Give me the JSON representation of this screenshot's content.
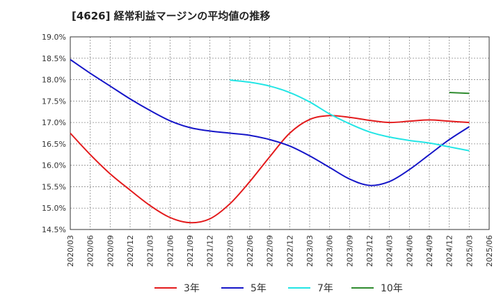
{
  "chart_data": {
    "type": "line",
    "title": "[4626]  経常利益マージンの平均値の推移",
    "xlabel": "",
    "ylabel": "",
    "ylim": [
      14.5,
      19.0
    ],
    "y_ticks": [
      "19.0%",
      "18.5%",
      "18.0%",
      "17.5%",
      "17.0%",
      "16.5%",
      "16.0%",
      "15.5%",
      "15.0%",
      "14.5%"
    ],
    "y_tick_values": [
      19.0,
      18.5,
      18.0,
      17.5,
      17.0,
      16.5,
      16.0,
      15.5,
      15.0,
      14.5
    ],
    "x_ticks": [
      "2020/03",
      "2020/06",
      "2020/09",
      "2020/12",
      "2021/03",
      "2021/06",
      "2021/09",
      "2021/12",
      "2022/03",
      "2022/06",
      "2022/09",
      "2022/12",
      "2023/03",
      "2023/06",
      "2023/09",
      "2023/12",
      "2024/03",
      "2024/06",
      "2024/09",
      "2024/12",
      "2025/03",
      "2025/06"
    ],
    "grid": true,
    "legend_position": "bottom",
    "series": [
      {
        "name": "3年",
        "color": "#e31a1c",
        "x": [
          "2020/03",
          "2020/06",
          "2020/09",
          "2020/12",
          "2021/03",
          "2021/06",
          "2021/09",
          "2021/12",
          "2022/03",
          "2022/06",
          "2022/09",
          "2022/12",
          "2023/03",
          "2023/06",
          "2023/09",
          "2023/12",
          "2024/03",
          "2024/06",
          "2024/09",
          "2024/12",
          "2025/03"
        ],
        "values": [
          16.75,
          16.25,
          15.8,
          15.42,
          15.06,
          14.78,
          14.66,
          14.75,
          15.1,
          15.62,
          16.2,
          16.75,
          17.07,
          17.16,
          17.12,
          17.05,
          17.0,
          17.03,
          17.06,
          17.03,
          17.0
        ]
      },
      {
        "name": "5年",
        "color": "#1515c8",
        "x": [
          "2020/03",
          "2020/06",
          "2020/09",
          "2020/12",
          "2021/03",
          "2021/06",
          "2021/09",
          "2021/12",
          "2022/03",
          "2022/06",
          "2022/09",
          "2022/12",
          "2023/03",
          "2023/06",
          "2023/09",
          "2023/12",
          "2024/03",
          "2024/06",
          "2024/09",
          "2024/12",
          "2025/03"
        ],
        "values": [
          18.47,
          18.15,
          17.85,
          17.55,
          17.28,
          17.04,
          16.88,
          16.8,
          16.75,
          16.7,
          16.6,
          16.45,
          16.22,
          15.95,
          15.68,
          15.53,
          15.62,
          15.9,
          16.25,
          16.6,
          16.9
        ]
      },
      {
        "name": "7年",
        "color": "#22e5e5",
        "x": [
          "2022/03",
          "2022/06",
          "2022/09",
          "2022/12",
          "2023/03",
          "2023/06",
          "2023/09",
          "2023/12",
          "2024/03",
          "2024/06",
          "2024/09",
          "2024/12",
          "2025/03"
        ],
        "values": [
          17.99,
          17.94,
          17.85,
          17.7,
          17.48,
          17.2,
          16.97,
          16.78,
          16.66,
          16.58,
          16.52,
          16.43,
          16.34
        ]
      },
      {
        "name": "10年",
        "color": "#2e8b2e",
        "x": [
          "2024/12",
          "2025/03"
        ],
        "values": [
          17.7,
          17.68
        ]
      }
    ]
  }
}
